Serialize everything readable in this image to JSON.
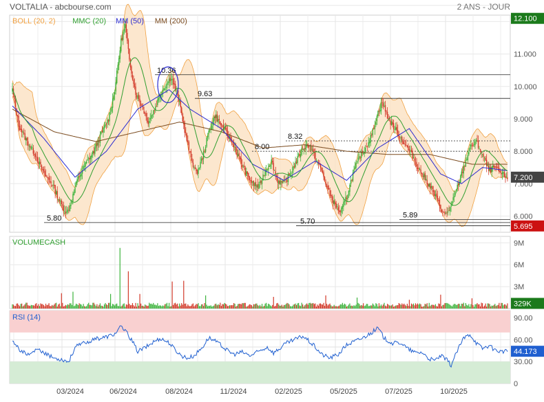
{
  "header": {
    "title": "VOLTALIA - abcbourse.com",
    "period": "2 ANS - JOUR"
  },
  "colors": {
    "boll": "#f0a040",
    "boll_fill": "#fbe3c5",
    "mmc": "#2f9e2f",
    "mm50": "#2a2ad0",
    "mm200": "#7a4a1e",
    "up": "#3cb33c",
    "down": "#d23a2a",
    "rsi": "#1f5fd0",
    "rsi_high": "#f9d0d0",
    "rsi_low": "#d5ecd5",
    "price_box": "#1b7a1b",
    "low_box": "#cc1111"
  },
  "chart_data": [
    {
      "type": "candlestick",
      "panel": "price",
      "legend": [
        {
          "label": "BOLL (20, 2)",
          "color": "#f0a040"
        },
        {
          "label": "MMC (20)",
          "color": "#2f9e2f"
        },
        {
          "label": "MM (50)",
          "color": "#2a2ad0"
        },
        {
          "label": "MM (200)",
          "color": "#7a4a1e"
        }
      ],
      "y_ticks": [
        "11.000",
        "10.000",
        "9.000",
        "8.000",
        "7.000",
        "6.000"
      ],
      "ylim": [
        5.5,
        12.2
      ],
      "x_ticks": [
        "03/2024",
        "06/2024",
        "08/2024",
        "11/2024",
        "02/2025",
        "05/2025",
        "07/2025",
        "10/2025"
      ],
      "price_flags": {
        "high": "12.100",
        "last": "7.200",
        "low": "5.695"
      },
      "annotations": [
        {
          "label": "10.36",
          "value": 10.36
        },
        {
          "label": "9.63",
          "value": 9.63
        },
        {
          "label": "8.32",
          "value": 8.32
        },
        {
          "label": "8.00",
          "value": 8.0
        },
        {
          "label": "5.89",
          "value": 5.89
        },
        {
          "label": "5.80",
          "value": 5.8
        },
        {
          "label": "5.70",
          "value": 5.7
        }
      ],
      "close_keyframes": [
        [
          0,
          9.9
        ],
        [
          6,
          8.8
        ],
        [
          14,
          8.3
        ],
        [
          22,
          7.9
        ],
        [
          30,
          7.3
        ],
        [
          38,
          7.0
        ],
        [
          46,
          6.4
        ],
        [
          52,
          6.1
        ],
        [
          56,
          6.4
        ],
        [
          62,
          7.1
        ],
        [
          70,
          7.6
        ],
        [
          78,
          8.0
        ],
        [
          86,
          8.6
        ],
        [
          92,
          9.0
        ],
        [
          98,
          9.9
        ],
        [
          104,
          11.4
        ],
        [
          108,
          11.9
        ],
        [
          112,
          10.8
        ],
        [
          118,
          9.8
        ],
        [
          124,
          9.4
        ],
        [
          130,
          8.9
        ],
        [
          136,
          9.3
        ],
        [
          142,
          9.8
        ],
        [
          148,
          10.1
        ],
        [
          152,
          10.3
        ],
        [
          156,
          9.9
        ],
        [
          160,
          9.5
        ],
        [
          164,
          8.8
        ],
        [
          170,
          7.9
        ],
        [
          176,
          7.3
        ],
        [
          182,
          7.8
        ],
        [
          188,
          8.6
        ],
        [
          194,
          9.1
        ],
        [
          200,
          8.8
        ],
        [
          206,
          8.5
        ],
        [
          212,
          8.2
        ],
        [
          218,
          7.7
        ],
        [
          224,
          7.3
        ],
        [
          230,
          7.0
        ],
        [
          236,
          6.9
        ],
        [
          242,
          7.4
        ],
        [
          248,
          7.7
        ],
        [
          254,
          7.1
        ],
        [
          260,
          7.0
        ],
        [
          266,
          7.3
        ],
        [
          272,
          7.7
        ],
        [
          278,
          8.1
        ],
        [
          284,
          8.2
        ],
        [
          290,
          7.8
        ],
        [
          296,
          7.4
        ],
        [
          302,
          6.8
        ],
        [
          308,
          6.4
        ],
        [
          314,
          6.1
        ],
        [
          320,
          6.6
        ],
        [
          326,
          7.3
        ],
        [
          332,
          7.8
        ],
        [
          338,
          8.1
        ],
        [
          344,
          8.5
        ],
        [
          350,
          9.2
        ],
        [
          354,
          9.5
        ],
        [
          360,
          9.0
        ],
        [
          366,
          8.7
        ],
        [
          372,
          8.4
        ],
        [
          378,
          8.1
        ],
        [
          384,
          7.8
        ],
        [
          390,
          7.4
        ],
        [
          396,
          7.1
        ],
        [
          402,
          6.8
        ],
        [
          408,
          6.4
        ],
        [
          414,
          6.0
        ],
        [
          420,
          6.3
        ],
        [
          426,
          6.9
        ],
        [
          432,
          7.5
        ],
        [
          438,
          8.1
        ],
        [
          444,
          8.3
        ],
        [
          450,
          7.9
        ],
        [
          456,
          7.4
        ],
        [
          462,
          7.5
        ],
        [
          468,
          7.3
        ],
        [
          474,
          7.2
        ]
      ],
      "ma50_keyframes": [
        [
          0,
          9.4
        ],
        [
          30,
          8.4
        ],
        [
          60,
          7.2
        ],
        [
          90,
          8.0
        ],
        [
          120,
          9.3
        ],
        [
          150,
          9.9
        ],
        [
          170,
          9.3
        ],
        [
          200,
          8.7
        ],
        [
          230,
          7.6
        ],
        [
          260,
          7.1
        ],
        [
          290,
          7.7
        ],
        [
          320,
          7.1
        ],
        [
          350,
          8.1
        ],
        [
          380,
          8.7
        ],
        [
          410,
          7.3
        ],
        [
          430,
          7.0
        ],
        [
          450,
          7.5
        ],
        [
          474,
          7.4
        ]
      ],
      "ma200_keyframes": [
        [
          0,
          9.3
        ],
        [
          40,
          8.6
        ],
        [
          80,
          8.3
        ],
        [
          120,
          8.6
        ],
        [
          160,
          8.9
        ],
        [
          200,
          8.6
        ],
        [
          240,
          8.1
        ],
        [
          280,
          8.2
        ],
        [
          320,
          8.0
        ],
        [
          360,
          7.9
        ],
        [
          400,
          7.9
        ],
        [
          440,
          7.6
        ],
        [
          474,
          7.6
        ]
      ]
    },
    {
      "type": "bar",
      "panel": "volume",
      "title": "VOLUMECASH",
      "y_ticks": [
        "9M",
        "6M",
        "3M"
      ],
      "ylim": [
        0,
        9.5
      ],
      "unit": "M",
      "last_value": "329K",
      "spikes": [
        [
          103,
          8.3
        ],
        [
          111,
          5.1
        ],
        [
          153,
          3.7
        ],
        [
          164,
          3.8
        ],
        [
          47,
          2.1
        ],
        [
          58,
          2.3
        ],
        [
          94,
          2.0
        ],
        [
          122,
          2.0
        ],
        [
          185,
          1.8
        ],
        [
          250,
          1.6
        ],
        [
          300,
          1.8
        ],
        [
          330,
          1.5
        ],
        [
          380,
          1.2
        ],
        [
          410,
          1.9
        ],
        [
          440,
          1.4
        ]
      ]
    },
    {
      "type": "line",
      "panel": "rsi",
      "title": "RSI (14)",
      "y_ticks": [
        "90.00",
        "60.00",
        "30.00",
        "0"
      ],
      "ylim": [
        0,
        100
      ],
      "bands": {
        "upper": 70,
        "lower": 30
      },
      "last_value": "44.173",
      "keyframes": [
        [
          0,
          60
        ],
        [
          8,
          45
        ],
        [
          16,
          38
        ],
        [
          24,
          47
        ],
        [
          32,
          40
        ],
        [
          40,
          35
        ],
        [
          48,
          33
        ],
        [
          54,
          30
        ],
        [
          60,
          50
        ],
        [
          70,
          56
        ],
        [
          80,
          61
        ],
        [
          90,
          64
        ],
        [
          98,
          68
        ],
        [
          104,
          78
        ],
        [
          108,
          72
        ],
        [
          114,
          60
        ],
        [
          120,
          44
        ],
        [
          128,
          50
        ],
        [
          136,
          58
        ],
        [
          142,
          62
        ],
        [
          150,
          56
        ],
        [
          156,
          46
        ],
        [
          162,
          38
        ],
        [
          168,
          35
        ],
        [
          174,
          38
        ],
        [
          182,
          50
        ],
        [
          188,
          63
        ],
        [
          194,
          58
        ],
        [
          200,
          52
        ],
        [
          206,
          45
        ],
        [
          212,
          40
        ],
        [
          220,
          43
        ],
        [
          228,
          38
        ],
        [
          236,
          44
        ],
        [
          244,
          50
        ],
        [
          250,
          42
        ],
        [
          256,
          48
        ],
        [
          262,
          55
        ],
        [
          270,
          60
        ],
        [
          278,
          65
        ],
        [
          284,
          58
        ],
        [
          290,
          50
        ],
        [
          296,
          40
        ],
        [
          304,
          35
        ],
        [
          312,
          40
        ],
        [
          320,
          53
        ],
        [
          328,
          58
        ],
        [
          336,
          63
        ],
        [
          344,
          70
        ],
        [
          350,
          76
        ],
        [
          356,
          62
        ],
        [
          364,
          55
        ],
        [
          372,
          56
        ],
        [
          378,
          48
        ],
        [
          386,
          42
        ],
        [
          392,
          43
        ],
        [
          398,
          35
        ],
        [
          404,
          31
        ],
        [
          410,
          38
        ],
        [
          416,
          32
        ],
        [
          420,
          25
        ],
        [
          426,
          45
        ],
        [
          432,
          62
        ],
        [
          438,
          68
        ],
        [
          444,
          56
        ],
        [
          450,
          48
        ],
        [
          456,
          52
        ],
        [
          462,
          46
        ],
        [
          468,
          44
        ],
        [
          474,
          44
        ]
      ]
    }
  ]
}
